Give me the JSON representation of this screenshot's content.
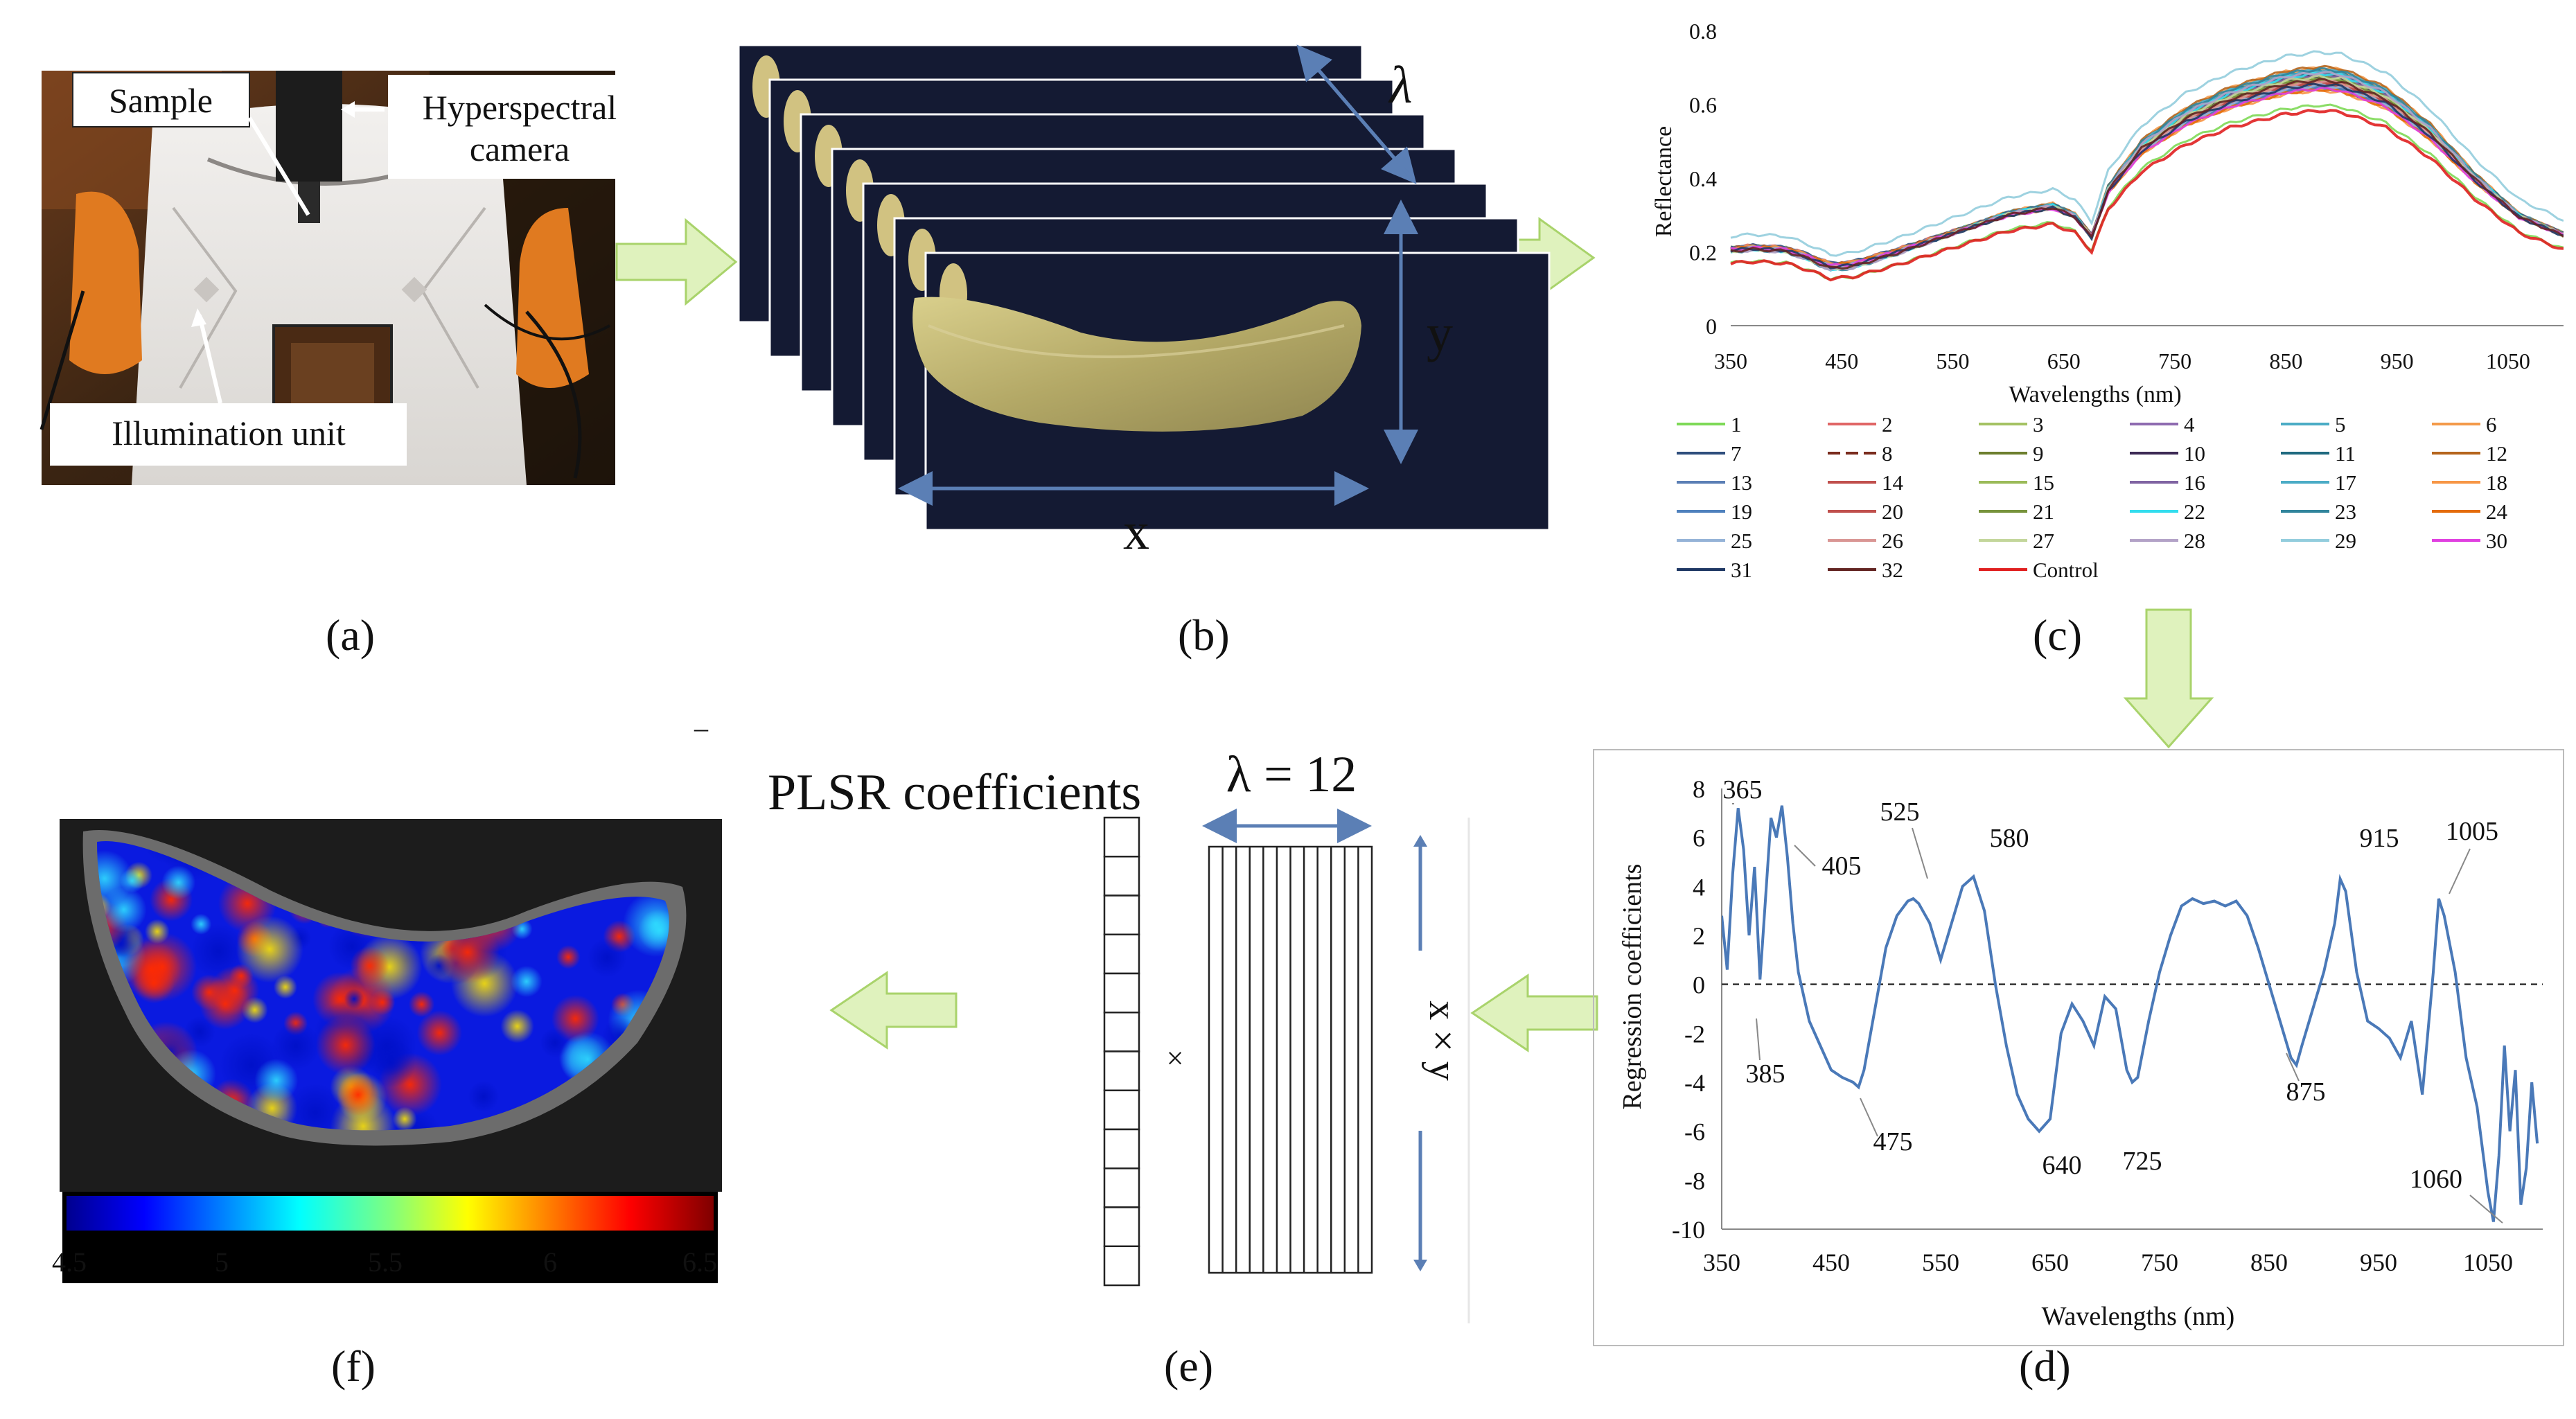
{
  "panel_labels": [
    "(a)",
    "(b)",
    "(c)",
    "(d)",
    "(e)",
    "(f)"
  ],
  "panel_a": {
    "sample_label": "Sample",
    "camera_label_line1": "Hyperspectral",
    "camera_label_line2": "camera",
    "illumination_label": "Illumination unit"
  },
  "panel_b": {
    "lambda_label": "λ",
    "y_label": "y",
    "x_label": "x"
  },
  "panel_e": {
    "title": "PLSR coefficients",
    "lambda_eq": "λ = 12",
    "times": "×",
    "xy_label": "x × y"
  },
  "panel_f": {
    "colorbar_ticks": [
      "4.5",
      "5",
      "5.5",
      "6",
      "6.5"
    ],
    "dash_mark": "–"
  },
  "colors": {
    "arrow_fill": "#dff2bd",
    "arrow_stroke": "#a9d36b",
    "axis_blue": "#5b7fb5",
    "regression_line": "#4a79b8",
    "control_red": "#e02020"
  },
  "chart_data": [
    {
      "type": "line",
      "panel": "c",
      "title": "",
      "xlabel": "Wavelengths (nm)",
      "ylabel": "Reflectance",
      "xlim": [
        350,
        1100
      ],
      "ylim": [
        0,
        0.8
      ],
      "xticks": [
        "350",
        "450",
        "550",
        "650",
        "750",
        "850",
        "950",
        "1050"
      ],
      "yticks": [
        "0",
        "0.2",
        "0.4",
        "0.6",
        "0.8"
      ],
      "legend_position": "below",
      "legend": [
        {
          "name": "1",
          "color": "#7ed957"
        },
        {
          "name": "2",
          "color": "#e06666"
        },
        {
          "name": "3",
          "color": "#a4c263"
        },
        {
          "name": "4",
          "color": "#8e6bb0"
        },
        {
          "name": "5",
          "color": "#4bacc6"
        },
        {
          "name": "6",
          "color": "#f39a4a"
        },
        {
          "name": "7",
          "color": "#2f4e7d"
        },
        {
          "name": "8",
          "color": "#7a2c1e"
        },
        {
          "name": "9",
          "color": "#6d7f2e"
        },
        {
          "name": "10",
          "color": "#3d2a55"
        },
        {
          "name": "11",
          "color": "#1f6a80"
        },
        {
          "name": "12",
          "color": "#b5651d"
        },
        {
          "name": "13",
          "color": "#5b7fb5"
        },
        {
          "name": "14",
          "color": "#c0504d"
        },
        {
          "name": "15",
          "color": "#9bbb59"
        },
        {
          "name": "16",
          "color": "#8064a2"
        },
        {
          "name": "17",
          "color": "#4bacc6"
        },
        {
          "name": "18",
          "color": "#f79646"
        },
        {
          "name": "19",
          "color": "#4f81bd"
        },
        {
          "name": "20",
          "color": "#c0504d"
        },
        {
          "name": "21",
          "color": "#77933c"
        },
        {
          "name": "22",
          "color": "#33ddee"
        },
        {
          "name": "23",
          "color": "#31859c"
        },
        {
          "name": "24",
          "color": "#e46c0a"
        },
        {
          "name": "25",
          "color": "#95b3d7"
        },
        {
          "name": "26",
          "color": "#d99694"
        },
        {
          "name": "27",
          "color": "#c3d69b"
        },
        {
          "name": "28",
          "color": "#b3a2c7"
        },
        {
          "name": "29",
          "color": "#93cddd"
        },
        {
          "name": "30",
          "color": "#e040e0"
        },
        {
          "name": "31",
          "color": "#1f3864"
        },
        {
          "name": "32",
          "color": "#632523"
        },
        {
          "name": "Control",
          "color": "#e02020"
        }
      ],
      "series_profile": {
        "x": [
          350,
          370,
          400,
          420,
          440,
          460,
          500,
          550,
          600,
          640,
          660,
          675,
          690,
          720,
          760,
          800,
          850,
          880,
          900,
          940,
          980,
          1020,
          1060,
          1100
        ],
        "y": [
          0.2,
          0.205,
          0.2,
          0.18,
          0.155,
          0.16,
          0.195,
          0.245,
          0.295,
          0.315,
          0.29,
          0.235,
          0.36,
          0.47,
          0.55,
          0.6,
          0.64,
          0.65,
          0.645,
          0.6,
          0.51,
          0.39,
          0.29,
          0.24
        ]
      }
    },
    {
      "type": "line",
      "panel": "d",
      "title": "",
      "xlabel": "Wavelengths (nm)",
      "ylabel": "Regression coefficients",
      "xlim": [
        350,
        1100
      ],
      "ylim": [
        -10,
        8
      ],
      "xticks": [
        "350",
        "450",
        "550",
        "650",
        "750",
        "850",
        "950",
        "1050"
      ],
      "yticks": [
        "8",
        "6",
        "4",
        "2",
        "0",
        "-2",
        "-4",
        "-6",
        "-8",
        "-10"
      ],
      "reference_line": 0,
      "annotations": [
        "365",
        "405",
        "525",
        "580",
        "915",
        "1005",
        "385",
        "475",
        "640",
        "725",
        "875",
        "1060"
      ],
      "series": [
        {
          "name": "PLSR",
          "x": [
            350,
            355,
            360,
            365,
            370,
            375,
            380,
            385,
            390,
            395,
            400,
            405,
            410,
            415,
            420,
            430,
            440,
            450,
            460,
            470,
            475,
            480,
            490,
            500,
            510,
            520,
            525,
            530,
            540,
            550,
            560,
            570,
            580,
            590,
            600,
            610,
            620,
            630,
            640,
            650,
            660,
            670,
            680,
            690,
            700,
            710,
            720,
            725,
            730,
            740,
            750,
            760,
            770,
            780,
            790,
            800,
            810,
            820,
            830,
            840,
            850,
            860,
            870,
            875,
            880,
            890,
            900,
            910,
            915,
            920,
            930,
            940,
            950,
            960,
            970,
            980,
            990,
            1000,
            1005,
            1010,
            1020,
            1030,
            1040,
            1050,
            1055,
            1060,
            1065,
            1070,
            1075,
            1080,
            1085,
            1090,
            1095
          ],
          "y": [
            2.8,
            0.6,
            4.5,
            7.2,
            5.5,
            2.0,
            4.8,
            0.2,
            3.5,
            6.8,
            6.0,
            7.3,
            5.2,
            2.5,
            0.5,
            -1.5,
            -2.5,
            -3.5,
            -3.8,
            -4.0,
            -4.2,
            -3.5,
            -1.0,
            1.5,
            2.8,
            3.4,
            3.5,
            3.3,
            2.5,
            1.0,
            2.5,
            4.0,
            4.4,
            3.0,
            0.0,
            -2.5,
            -4.5,
            -5.5,
            -6.0,
            -5.5,
            -2.0,
            -0.8,
            -1.5,
            -2.5,
            -0.5,
            -1.0,
            -3.5,
            -4.0,
            -3.8,
            -1.5,
            0.5,
            2.0,
            3.2,
            3.5,
            3.3,
            3.4,
            3.2,
            3.4,
            2.8,
            1.5,
            0.0,
            -1.5,
            -3.0,
            -3.3,
            -2.5,
            -1.0,
            0.5,
            2.5,
            4.3,
            3.8,
            0.5,
            -1.5,
            -1.8,
            -2.2,
            -3.0,
            -1.5,
            -4.5,
            0.5,
            3.5,
            2.8,
            0.5,
            -3.0,
            -5.0,
            -8.5,
            -9.7,
            -7.0,
            -2.5,
            -6.0,
            -3.5,
            -9.0,
            -7.5,
            -4.0,
            -6.5
          ]
        }
      ]
    }
  ]
}
